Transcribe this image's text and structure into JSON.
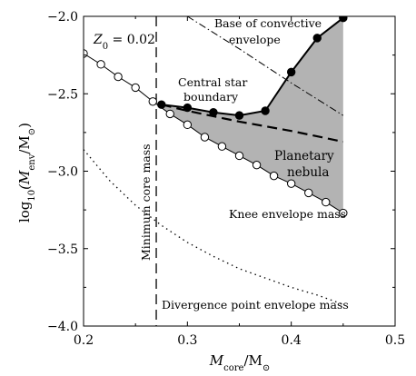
{
  "chart_data": {
    "type": "line",
    "xlabel_main": "M",
    "xlabel_sub": "core",
    "xlabel_rest": "/M",
    "xlabel_sun": "⊙",
    "ylabel_prefix": "log",
    "ylabel_base": "10",
    "ylabel_open": "(M",
    "ylabel_sub": "env",
    "ylabel_rest": "/M",
    "ylabel_sun": "⊙",
    "ylabel_close": ")",
    "xlim": [
      0.2,
      0.5
    ],
    "ylim": [
      -4.0,
      -2.0
    ],
    "xticks": [
      0.2,
      0.3,
      0.4,
      0.5
    ],
    "xtick_labels": [
      "0.2",
      "0.3",
      "0.4",
      "0.5"
    ],
    "yticks": [
      -2.0,
      -2.5,
      -3.0,
      -3.5,
      -4.0
    ],
    "ytick_labels": [
      "−2.0",
      "−2.5",
      "−3.0",
      "−3.5",
      "−4.0"
    ],
    "z0_label": "Z",
    "z0_sub": "0",
    "z0_value": " = 0.02",
    "series": [
      {
        "name": "Knee envelope mass",
        "style": "solid-open-circles",
        "x": [
          0.2,
          0.2167,
          0.2333,
          0.25,
          0.2667,
          0.2833,
          0.3,
          0.3167,
          0.3333,
          0.35,
          0.3667,
          0.3833,
          0.4,
          0.4167,
          0.4333,
          0.45
        ],
        "y": [
          -2.24,
          -2.31,
          -2.39,
          -2.46,
          -2.55,
          -2.63,
          -2.7,
          -2.78,
          -2.84,
          -2.9,
          -2.96,
          -3.03,
          -3.08,
          -3.14,
          -3.2,
          -3.27
        ]
      },
      {
        "name": "Central star boundary",
        "style": "solid-filled-circles",
        "x": [
          0.275,
          0.3,
          0.325,
          0.35,
          0.375,
          0.4,
          0.425,
          0.45
        ],
        "y": [
          -2.57,
          -2.59,
          -2.62,
          -2.64,
          -2.61,
          -2.36,
          -2.14,
          -2.01
        ]
      },
      {
        "name": "",
        "style": "dashed",
        "x": [
          0.275,
          0.3,
          0.35,
          0.4,
          0.45
        ],
        "y": [
          -2.57,
          -2.61,
          -2.68,
          -2.74,
          -2.81
        ]
      },
      {
        "name": "Base of convective envelope",
        "style": "dash-dot",
        "x": [
          0.3,
          0.35,
          0.4,
          0.45
        ],
        "y": [
          -2.0,
          -2.21,
          -2.43,
          -2.64
        ]
      },
      {
        "name": "Divergence point envelope mass",
        "style": "dotted",
        "x": [
          0.2,
          0.225,
          0.25,
          0.275,
          0.3,
          0.325,
          0.35,
          0.375,
          0.4,
          0.425,
          0.45
        ],
        "y": [
          -2.86,
          -3.06,
          -3.22,
          -3.35,
          -3.46,
          -3.55,
          -3.63,
          -3.69,
          -3.75,
          -3.8,
          -3.86
        ]
      }
    ],
    "vertical_line": {
      "x": 0.27,
      "label": "Minimum core mass"
    },
    "shaded_region": {
      "label_line1": "Planetary",
      "label_line2": "nebula"
    },
    "annotations": {
      "central_star_line1": "Central star",
      "central_star_line2": "boundary",
      "base_convective_line1": "Base of convective",
      "base_convective_line2": "envelope",
      "knee": "Knee envelope mass",
      "divergence": "Divergence point envelope mass"
    },
    "colors": {
      "shade": "#b3b3b3",
      "line": "#000000"
    }
  }
}
